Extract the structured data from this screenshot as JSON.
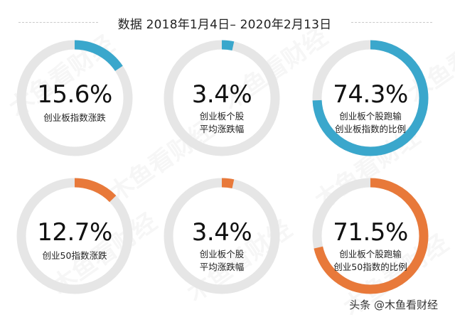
{
  "header": {
    "title": "数据 2018年1月4日– 2020年2月13日"
  },
  "footer": {
    "text": "头条 @木鱼看财经"
  },
  "watermark": "木鱼看财经",
  "colors": {
    "blue": "#3aa7cc",
    "orange": "#e8793a",
    "track": "#e6e6e6"
  },
  "tiles": [
    {
      "value": "15.6%",
      "fraction": 0.156,
      "color": "blue",
      "label": [
        "创业板指数涨跌"
      ]
    },
    {
      "value": "3.4%",
      "fraction": 0.034,
      "color": "blue",
      "label": [
        "创业板个股",
        "平均涨跌幅"
      ]
    },
    {
      "value": "74.3%",
      "fraction": 0.743,
      "color": "blue",
      "label": [
        "创业板个股跑输",
        "创业板指数的比例"
      ]
    },
    {
      "value": "12.7%",
      "fraction": 0.127,
      "color": "orange",
      "label": [
        "创业50指数涨跌"
      ]
    },
    {
      "value": "3.4%",
      "fraction": 0.034,
      "color": "orange",
      "label": [
        "创业板个股",
        "平均涨跌幅"
      ]
    },
    {
      "value": "71.5%",
      "fraction": 0.715,
      "color": "orange",
      "label": [
        "创业板个股跑输",
        "创业50指数的比例"
      ]
    }
  ],
  "chart_data": {
    "type": "donut",
    "title": "数据 2018年1月4日– 2020年2月13日",
    "series": [
      {
        "name": "创业板指数涨跌",
        "value": 15.6,
        "unit": "%"
      },
      {
        "name": "创业板个股平均涨跌幅",
        "value": 3.4,
        "unit": "%"
      },
      {
        "name": "创业板个股跑输创业板指数的比例",
        "value": 74.3,
        "unit": "%"
      },
      {
        "name": "创业50指数涨跌",
        "value": 12.7,
        "unit": "%"
      },
      {
        "name": "创业板个股平均涨跌幅",
        "value": 3.4,
        "unit": "%"
      },
      {
        "name": "创业板个股跑输创业50指数的比例",
        "value": 71.5,
        "unit": "%"
      }
    ]
  }
}
